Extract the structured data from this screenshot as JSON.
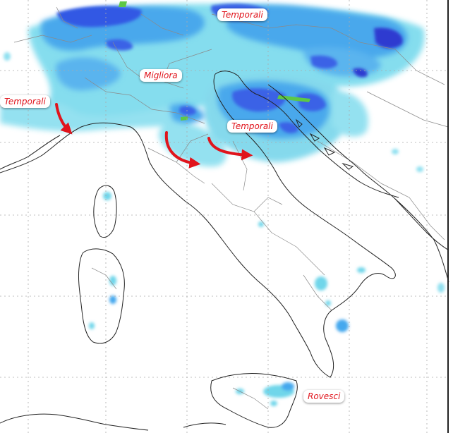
{
  "labels": {
    "temporali_north": "Temporali",
    "migliora": "Migliora",
    "temporali_west": "Temporali",
    "temporali_center": "Temporali",
    "rovesci": "Rovesci"
  },
  "colors": {
    "light_precip": "#6fd6ea",
    "moderate_precip": "#45a8ee",
    "heavy_precip": "#3358e4",
    "very_heavy_precip": "#2d3ad0",
    "storm_core": "#5dc846",
    "arrow": "#e0141c",
    "coastline": "#222222",
    "borders": "#888888",
    "grid": "#aaaaaa"
  }
}
